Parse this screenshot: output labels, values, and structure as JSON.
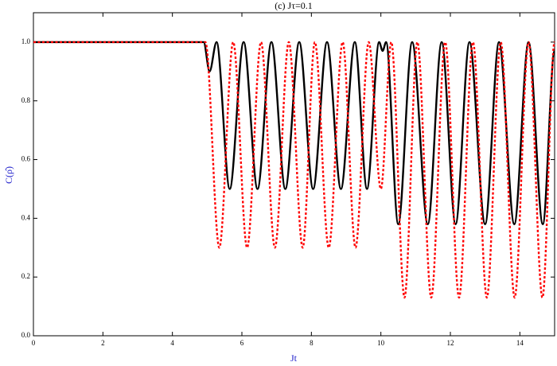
{
  "chart_data": {
    "type": "line",
    "title": "(c) Jτ=0.1",
    "x_label": "Jt",
    "y_label": "C(ρ̂)",
    "xlim": [
      0,
      15
    ],
    "ylim": [
      0,
      1.1
    ],
    "xticks": [
      0,
      2,
      4,
      6,
      8,
      10,
      12,
      14
    ],
    "yticks": [
      {
        "value": 0,
        "label": "0.0"
      },
      {
        "value": 0.2,
        "label": "0.2"
      },
      {
        "value": 0.4,
        "label": "0.4"
      },
      {
        "value": 0.6,
        "label": "0.6"
      },
      {
        "value": 0.8,
        "label": "0.8"
      },
      {
        "value": 1,
        "label": "1.0"
      }
    ],
    "series": [
      {
        "color": "#000000",
        "style": "solid",
        "x": [
          0,
          4.9,
          5.07,
          5.27,
          5.65,
          6.05,
          6.45,
          6.85,
          7.25,
          7.65,
          8.05,
          8.45,
          8.85,
          9.25,
          9.6,
          9.95,
          10.05,
          10.15,
          10.5,
          10.9,
          11.35,
          11.75,
          12.15,
          12.55,
          13.0,
          13.4,
          13.84,
          14.25,
          14.66,
          15
        ],
        "values": [
          1,
          1,
          0.9,
          1,
          0.5,
          1,
          0.5,
          1,
          0.5,
          1,
          0.5,
          1,
          0.5,
          1,
          0.5,
          1,
          0.97,
          1,
          0.38,
          1,
          0.38,
          1,
          0.38,
          1,
          0.38,
          1,
          0.38,
          1,
          0.38,
          0.97
        ]
      },
      {
        "color": "#ff0000",
        "style": "dotted",
        "x": [
          0,
          4.95,
          5.35,
          5.75,
          6.15,
          6.55,
          6.95,
          7.35,
          7.75,
          8.1,
          8.5,
          8.9,
          9.27,
          9.65,
          10.0,
          10.3,
          10.68,
          11.05,
          11.45,
          11.85,
          12.25,
          12.65,
          13.05,
          13.45,
          13.85,
          14.25,
          14.65,
          15
        ],
        "values": [
          1,
          1,
          0.3,
          1,
          0.3,
          1,
          0.3,
          1,
          0.3,
          1,
          0.3,
          1,
          0.3,
          1,
          0.5,
          1,
          0.13,
          1,
          0.13,
          1,
          0.13,
          1,
          0.13,
          1,
          0.13,
          1,
          0.13,
          1
        ]
      }
    ]
  }
}
